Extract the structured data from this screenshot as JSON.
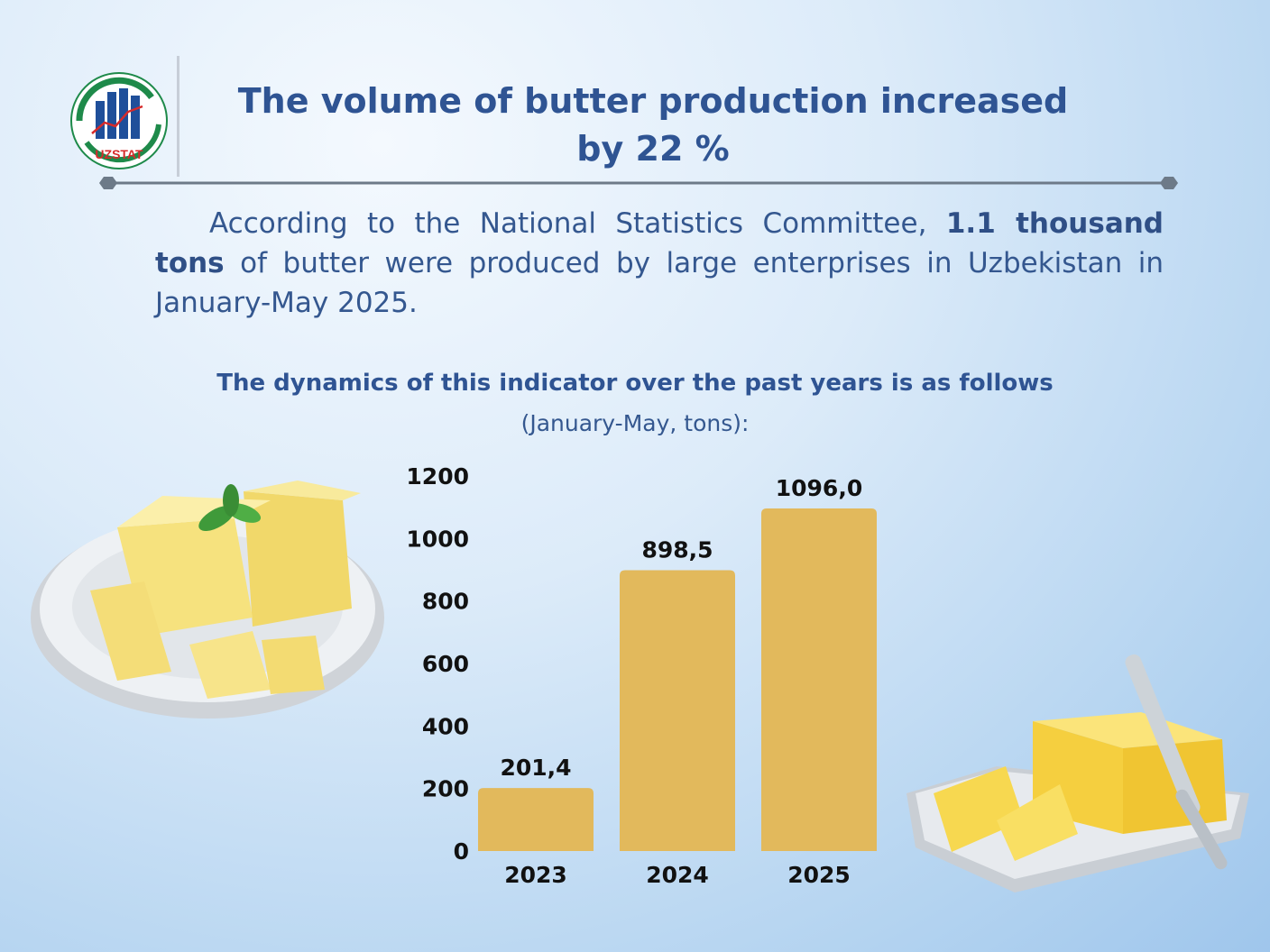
{
  "header": {
    "logo_text": "UZSTAT",
    "title_line1": "The volume of butter production increased",
    "title_line2": "by 22 %"
  },
  "intro": {
    "part1": "According to the National Statistics Committee, ",
    "highlight": "1.1 thousand tons",
    "part2": " of butter were produced by large enterprises in Uzbekistan in January-May 2025."
  },
  "chart_heading": {
    "subtitle": "The dynamics of this indicator over the past years is as follows",
    "units": "(January-May, tons):"
  },
  "colors": {
    "bar": "#e2b95c",
    "title": "#2f5493",
    "text": "#34578f"
  },
  "chart_data": {
    "type": "bar",
    "categories": [
      "2023",
      "2024",
      "2025"
    ],
    "values": [
      201.4,
      898.5,
      1096.0
    ],
    "value_labels": [
      "201,4",
      "898,5",
      "1096,0"
    ],
    "yticks": [
      0,
      200,
      400,
      600,
      800,
      1000,
      1200
    ],
    "ylim": [
      0,
      1200
    ],
    "grid": false,
    "legend": "none"
  }
}
